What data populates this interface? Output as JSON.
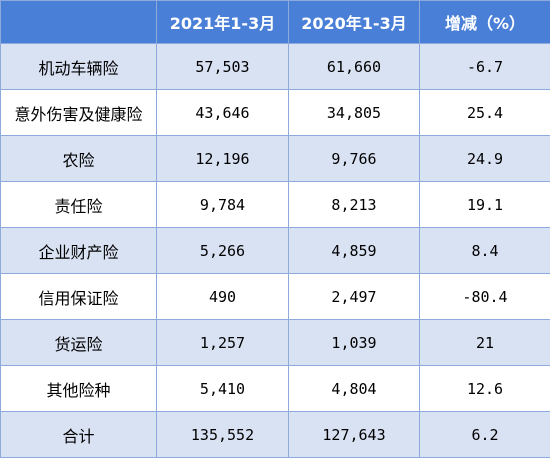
{
  "table": {
    "headers": [
      "",
      "2021年1-3月",
      "2020年1-3月",
      "增减（%）"
    ],
    "rows": [
      {
        "name": "机动车辆险",
        "y2021": "57,503",
        "y2020": "61,660",
        "change": "-6.7"
      },
      {
        "name": "意外伤害及健康险",
        "y2021": "43,646",
        "y2020": "34,805",
        "change": "25.4"
      },
      {
        "name": "农险",
        "y2021": "12,196",
        "y2020": "9,766",
        "change": "24.9"
      },
      {
        "name": "责任险",
        "y2021": "9,784",
        "y2020": "8,213",
        "change": "19.1"
      },
      {
        "name": "企业财产险",
        "y2021": "5,266",
        "y2020": "4,859",
        "change": "8.4"
      },
      {
        "name": "信用保证险",
        "y2021": "490",
        "y2020": "2,497",
        "change": "-80.4"
      },
      {
        "name": "货运险",
        "y2021": "1,257",
        "y2020": "1,039",
        "change": "21"
      },
      {
        "name": "其他险种",
        "y2021": "5,410",
        "y2020": "4,804",
        "change": "12.6"
      },
      {
        "name": "合计",
        "y2021": "135,552",
        "y2020": "127,643",
        "change": "6.2"
      }
    ]
  },
  "colors": {
    "header_bg": "#4a7fd8",
    "header_text": "#ffffff",
    "row_alt_bg": "#d9e2f3",
    "row_bg": "#ffffff",
    "border": "#8ea9db"
  }
}
